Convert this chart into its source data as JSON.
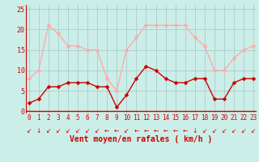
{
  "hours": [
    0,
    1,
    2,
    3,
    4,
    5,
    6,
    7,
    8,
    9,
    10,
    11,
    12,
    13,
    14,
    15,
    16,
    17,
    18,
    19,
    20,
    21,
    22,
    23
  ],
  "vent_moyen": [
    2,
    3,
    6,
    6,
    7,
    7,
    7,
    6,
    6,
    1,
    4,
    8,
    11,
    10,
    8,
    7,
    7,
    8,
    8,
    3,
    3,
    7,
    8,
    8
  ],
  "rafales": [
    8,
    10,
    21,
    19,
    16,
    16,
    15,
    15,
    8,
    5,
    15,
    18,
    21,
    21,
    21,
    21,
    21,
    18,
    16,
    10,
    10,
    13,
    15,
    16
  ],
  "bg_color": "#cceee8",
  "grid_color": "#aacccc",
  "line_color_moyen": "#cc0000",
  "line_color_rafales": "#ffaaaa",
  "xlabel": "Vent moyen/en rafales ( km/h )",
  "yticks": [
    0,
    5,
    10,
    15,
    20,
    25
  ],
  "ylim": [
    -0.5,
    26
  ],
  "xlim": [
    -0.3,
    23.3
  ],
  "markersize": 2.5,
  "linewidth": 1.0,
  "tick_fontsize": 5.5,
  "xlabel_fontsize": 7.0,
  "ytick_fontsize": 6.0
}
